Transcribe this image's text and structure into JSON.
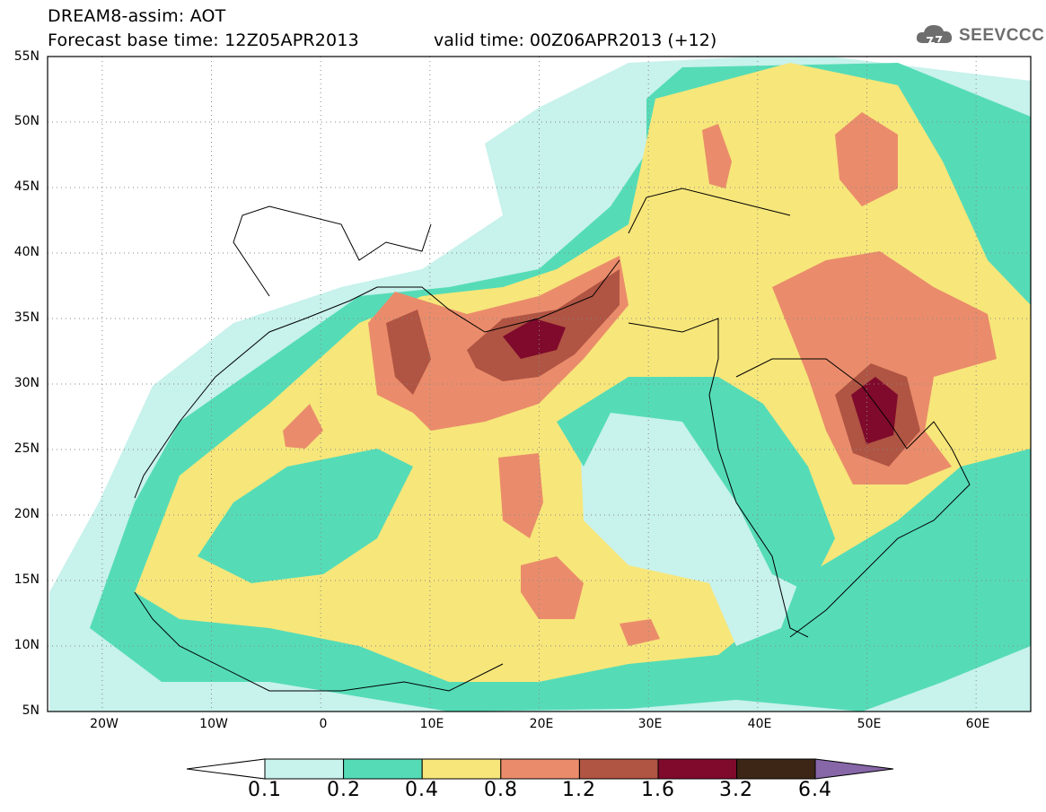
{
  "header": {
    "title": "DREAM8-assim: AOT",
    "base_time": "Forecast base time: 12Z05APR2013",
    "valid_time": "valid time: 00Z06APR2013 (+12)"
  },
  "logo": {
    "text": "SEEVCCC",
    "icon": "cloud-icon"
  },
  "map": {
    "lat_labels": [
      "55N",
      "50N",
      "45N",
      "40N",
      "35N",
      "30N",
      "25N",
      "20N",
      "15N",
      "10N",
      "5N"
    ],
    "lon_labels": [
      "20W",
      "10W",
      "0",
      "10E",
      "20E",
      "30E",
      "40E",
      "50E",
      "60E"
    ],
    "lat_range": [
      5,
      55
    ],
    "lon_range": [
      -25,
      65
    ],
    "grid": true
  },
  "colorbar": {
    "levels": [
      "0.1",
      "0.2",
      "0.4",
      "0.8",
      "1.2",
      "1.6",
      "3.2",
      "6.4"
    ],
    "colors": [
      "#c8f2ec",
      "#55dcb7",
      "#f7e67a",
      "#ea8c6b",
      "#b05443",
      "#7f0a2c",
      "#3d2616",
      "#8767a8"
    ]
  }
}
